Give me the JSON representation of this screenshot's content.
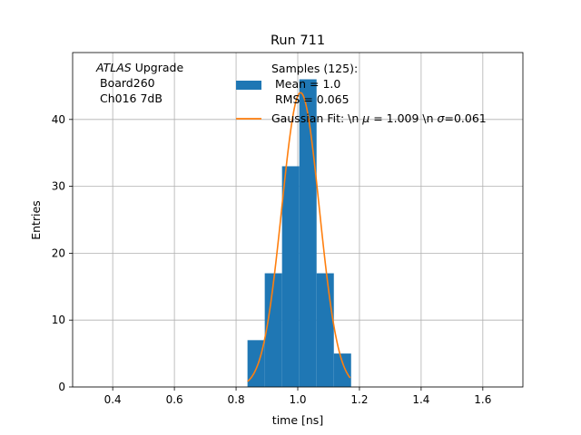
{
  "chart_data": {
    "type": "bar",
    "title": "Run 711",
    "xlabel": "time [ns]",
    "ylabel": "Entries",
    "xlim": [
      0.27,
      1.73
    ],
    "ylim": [
      0,
      50
    ],
    "grid": true,
    "xticks": [
      0.4,
      0.6,
      0.8,
      1.0,
      1.2,
      1.4,
      1.6
    ],
    "xtick_labels": [
      "0.4",
      "0.6",
      "0.8",
      "1.0",
      "1.2",
      "1.4",
      "1.6"
    ],
    "yticks": [
      0,
      10,
      20,
      30,
      40
    ],
    "ytick_labels": [
      "0",
      "10",
      "20",
      "30",
      "40"
    ],
    "annotation": {
      "experiment": "ATLAS",
      "experiment_suffix": " Upgrade",
      "board": "Board260",
      "channel": "Ch016 7dB"
    },
    "histogram": {
      "color": "#1f77b4",
      "bin_edges": [
        0.837,
        0.893,
        0.949,
        1.005,
        1.061,
        1.117,
        1.173
      ],
      "counts": [
        7,
        17,
        33,
        46,
        17,
        5
      ]
    },
    "fit": {
      "color": "#ff7f0e",
      "mu": 1.009,
      "sigma": 0.061,
      "amplitude": 44,
      "x_range": [
        0.837,
        1.17
      ]
    },
    "legend": {
      "location": "upper center",
      "hist_label_lines": [
        "Samples (125):",
        " Mean = 1.0",
        " RMS = 0.065"
      ],
      "fit_label_prefix": "Gaussian Fit: \\n ",
      "fit_mu_symbol": "μ",
      "fit_mu_value": " = 1.009 \\n ",
      "fit_sigma_symbol": "σ",
      "fit_sigma_value": "=0.061"
    }
  }
}
